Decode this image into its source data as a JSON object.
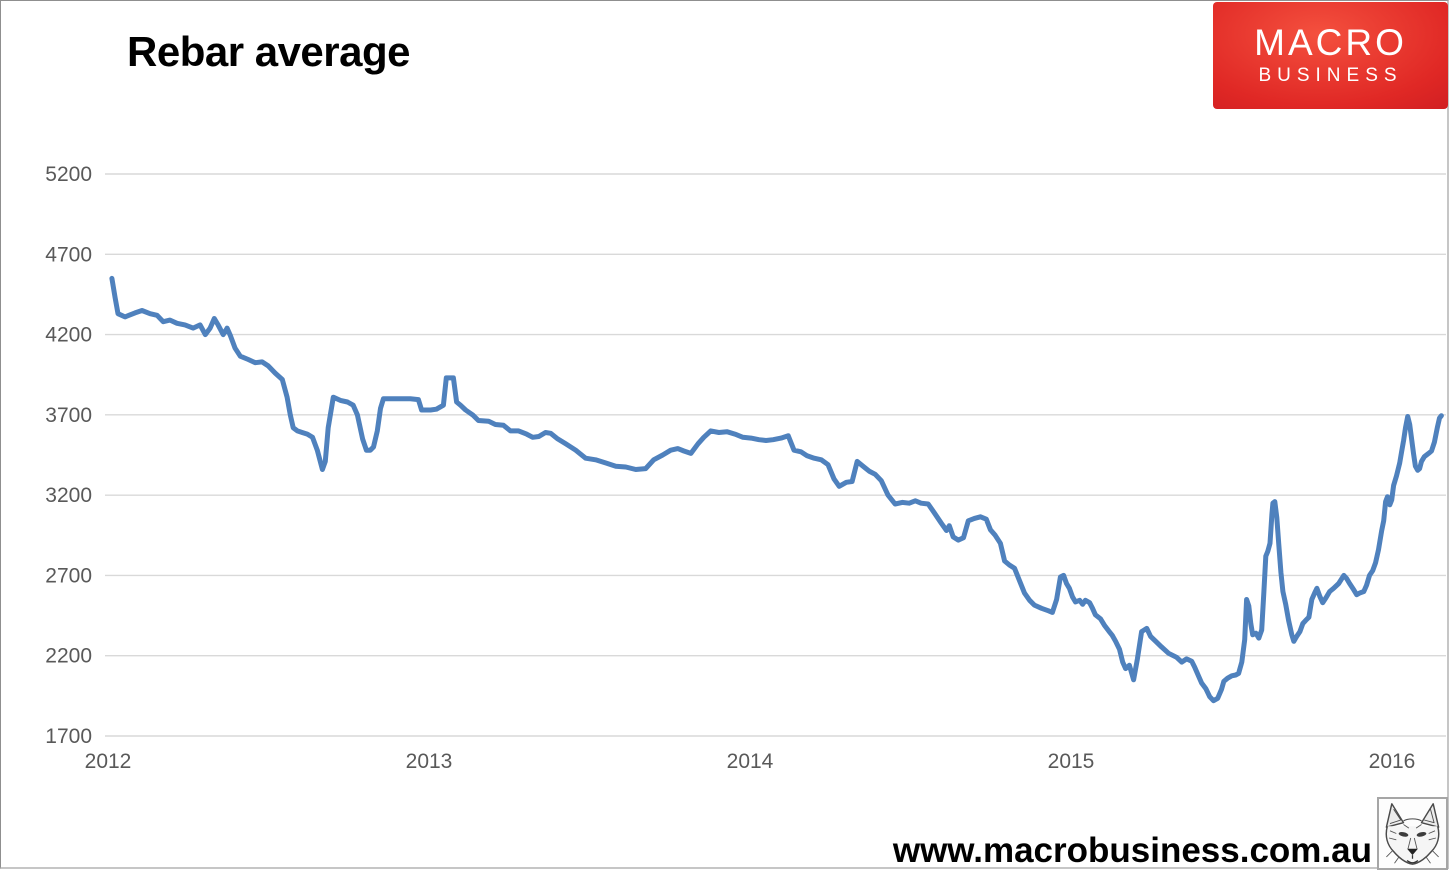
{
  "page": {
    "title": "Rebar average",
    "footer_url": "www.macrobusiness.com.au"
  },
  "logo": {
    "line1": "MACRO",
    "line2": "BUSINESS",
    "bg_color": "#d8232a",
    "text_color": "#ffffff"
  },
  "icons": {
    "wolf": "wolf-head-sketch-icon"
  },
  "colors": {
    "line": "#4F81BD",
    "gridline": "#d9d9d9",
    "axis_label": "#595959",
    "title": "#000000",
    "background": "#ffffff"
  },
  "chart_data": {
    "type": "line",
    "title": "Rebar average",
    "xlabel": "",
    "ylabel": "",
    "grid": true,
    "legend": "none",
    "ylim": [
      1700,
      5200
    ],
    "xlim": [
      2012.0,
      2016.18
    ],
    "y_ticks": [
      5200,
      4700,
      4200,
      3700,
      3200,
      2700,
      2200,
      1700
    ],
    "x_ticks": [
      2012,
      2013,
      2014,
      2015,
      2016
    ],
    "series": [
      {
        "name": "Rebar average",
        "color": "#4F81BD",
        "points": [
          [
            2012.012,
            4550
          ],
          [
            2012.022,
            4430
          ],
          [
            2012.031,
            4330
          ],
          [
            2012.053,
            4310
          ],
          [
            2012.084,
            4335
          ],
          [
            2012.106,
            4350
          ],
          [
            2012.131,
            4330
          ],
          [
            2012.153,
            4320
          ],
          [
            2012.172,
            4280
          ],
          [
            2012.193,
            4290
          ],
          [
            2012.215,
            4270
          ],
          [
            2012.24,
            4260
          ],
          [
            2012.265,
            4240
          ],
          [
            2012.287,
            4260
          ],
          [
            2012.303,
            4200
          ],
          [
            2012.318,
            4240
          ],
          [
            2012.331,
            4300
          ],
          [
            2012.343,
            4260
          ],
          [
            2012.359,
            4200
          ],
          [
            2012.371,
            4240
          ],
          [
            2012.381,
            4195
          ],
          [
            2012.396,
            4115
          ],
          [
            2012.412,
            4065
          ],
          [
            2012.437,
            4045
          ],
          [
            2012.459,
            4025
          ],
          [
            2012.48,
            4030
          ],
          [
            2012.499,
            4005
          ],
          [
            2012.521,
            3960
          ],
          [
            2012.543,
            3920
          ],
          [
            2012.558,
            3810
          ],
          [
            2012.568,
            3700
          ],
          [
            2012.577,
            3620
          ],
          [
            2012.59,
            3600
          ],
          [
            2012.605,
            3590
          ],
          [
            2012.621,
            3580
          ],
          [
            2012.637,
            3560
          ],
          [
            2012.652,
            3480
          ],
          [
            2012.668,
            3360
          ],
          [
            2012.677,
            3410
          ],
          [
            2012.686,
            3620
          ],
          [
            2012.702,
            3810
          ],
          [
            2012.724,
            3790
          ],
          [
            2012.746,
            3780
          ],
          [
            2012.764,
            3760
          ],
          [
            2012.777,
            3700
          ],
          [
            2012.793,
            3550
          ],
          [
            2012.805,
            3480
          ],
          [
            2012.817,
            3480
          ],
          [
            2012.827,
            3500
          ],
          [
            2012.839,
            3600
          ],
          [
            2012.849,
            3740
          ],
          [
            2012.858,
            3800
          ],
          [
            2012.895,
            3800
          ],
          [
            2012.942,
            3800
          ],
          [
            2012.967,
            3795
          ],
          [
            2012.977,
            3730
          ],
          [
            2013.005,
            3730
          ],
          [
            2013.023,
            3735
          ],
          [
            2013.045,
            3760
          ],
          [
            2013.054,
            3930
          ],
          [
            2013.076,
            3930
          ],
          [
            2013.086,
            3780
          ],
          [
            2013.098,
            3760
          ],
          [
            2013.114,
            3730
          ],
          [
            2013.136,
            3700
          ],
          [
            2013.154,
            3665
          ],
          [
            2013.186,
            3660
          ],
          [
            2013.207,
            3640
          ],
          [
            2013.232,
            3635
          ],
          [
            2013.254,
            3600
          ],
          [
            2013.279,
            3600
          ],
          [
            2013.304,
            3580
          ],
          [
            2013.323,
            3560
          ],
          [
            2013.342,
            3565
          ],
          [
            2013.363,
            3590
          ],
          [
            2013.379,
            3585
          ],
          [
            2013.401,
            3550
          ],
          [
            2013.426,
            3520
          ],
          [
            2013.457,
            3480
          ],
          [
            2013.488,
            3430
          ],
          [
            2013.519,
            3420
          ],
          [
            2013.551,
            3400
          ],
          [
            2013.582,
            3380
          ],
          [
            2013.613,
            3375
          ],
          [
            2013.644,
            3360
          ],
          [
            2013.675,
            3365
          ],
          [
            2013.7,
            3420
          ],
          [
            2013.728,
            3450
          ],
          [
            2013.753,
            3480
          ],
          [
            2013.775,
            3490
          ],
          [
            2013.794,
            3475
          ],
          [
            2013.816,
            3460
          ],
          [
            2013.838,
            3520
          ],
          [
            2013.856,
            3560
          ],
          [
            2013.878,
            3600
          ],
          [
            2013.903,
            3590
          ],
          [
            2013.928,
            3595
          ],
          [
            2013.953,
            3580
          ],
          [
            2013.978,
            3560
          ],
          [
            2014.003,
            3555
          ],
          [
            2014.028,
            3545
          ],
          [
            2014.05,
            3540
          ],
          [
            2014.072,
            3545
          ],
          [
            2014.097,
            3555
          ],
          [
            2014.119,
            3570
          ],
          [
            2014.137,
            3480
          ],
          [
            2014.159,
            3470
          ],
          [
            2014.178,
            3445
          ],
          [
            2014.2,
            3430
          ],
          [
            2014.222,
            3420
          ],
          [
            2014.243,
            3390
          ],
          [
            2014.262,
            3300
          ],
          [
            2014.278,
            3255
          ],
          [
            2014.3,
            3280
          ],
          [
            2014.318,
            3285
          ],
          [
            2014.334,
            3410
          ],
          [
            2014.352,
            3380
          ],
          [
            2014.371,
            3350
          ],
          [
            2014.39,
            3330
          ],
          [
            2014.409,
            3290
          ],
          [
            2014.43,
            3200
          ],
          [
            2014.452,
            3145
          ],
          [
            2014.474,
            3155
          ],
          [
            2014.496,
            3150
          ],
          [
            2014.515,
            3165
          ],
          [
            2014.533,
            3150
          ],
          [
            2014.555,
            3145
          ],
          [
            2014.574,
            3090
          ],
          [
            2014.596,
            3025
          ],
          [
            2014.612,
            2980
          ],
          [
            2014.621,
            3010
          ],
          [
            2014.633,
            2940
          ],
          [
            2014.649,
            2920
          ],
          [
            2014.665,
            2935
          ],
          [
            2014.68,
            3040
          ],
          [
            2014.699,
            3055
          ],
          [
            2014.718,
            3065
          ],
          [
            2014.736,
            3050
          ],
          [
            2014.749,
            2985
          ],
          [
            2014.764,
            2950
          ],
          [
            2014.78,
            2900
          ],
          [
            2014.793,
            2790
          ],
          [
            2014.808,
            2765
          ],
          [
            2014.824,
            2745
          ],
          [
            2014.839,
            2670
          ],
          [
            2014.855,
            2590
          ],
          [
            2014.871,
            2545
          ],
          [
            2014.886,
            2515
          ],
          [
            2014.908,
            2495
          ],
          [
            2014.93,
            2480
          ],
          [
            2014.942,
            2470
          ],
          [
            2014.955,
            2550
          ],
          [
            2014.967,
            2690
          ],
          [
            2014.977,
            2700
          ],
          [
            2014.986,
            2650
          ],
          [
            2014.995,
            2620
          ],
          [
            2015.005,
            2565
          ],
          [
            2015.014,
            2535
          ],
          [
            2015.027,
            2545
          ],
          [
            2015.036,
            2520
          ],
          [
            2015.045,
            2545
          ],
          [
            2015.058,
            2530
          ],
          [
            2015.067,
            2495
          ],
          [
            2015.076,
            2455
          ],
          [
            2015.092,
            2430
          ],
          [
            2015.104,
            2390
          ],
          [
            2015.117,
            2355
          ],
          [
            2015.129,
            2325
          ],
          [
            2015.139,
            2290
          ],
          [
            2015.151,
            2240
          ],
          [
            2015.161,
            2160
          ],
          [
            2015.17,
            2120
          ],
          [
            2015.182,
            2140
          ],
          [
            2015.195,
            2050
          ],
          [
            2015.207,
            2180
          ],
          [
            2015.22,
            2350
          ],
          [
            2015.236,
            2370
          ],
          [
            2015.248,
            2320
          ],
          [
            2015.264,
            2290
          ],
          [
            2015.282,
            2255
          ],
          [
            2015.304,
            2215
          ],
          [
            2015.329,
            2190
          ],
          [
            2015.345,
            2160
          ],
          [
            2015.36,
            2180
          ],
          [
            2015.376,
            2165
          ],
          [
            2015.385,
            2130
          ],
          [
            2015.398,
            2070
          ],
          [
            2015.407,
            2030
          ],
          [
            2015.42,
            1995
          ],
          [
            2015.432,
            1945
          ],
          [
            2015.444,
            1920
          ],
          [
            2015.457,
            1935
          ],
          [
            2015.469,
            1990
          ],
          [
            2015.476,
            2040
          ],
          [
            2015.488,
            2060
          ],
          [
            2015.501,
            2075
          ],
          [
            2015.513,
            2080
          ],
          [
            2015.522,
            2090
          ],
          [
            2015.532,
            2160
          ],
          [
            2015.541,
            2300
          ],
          [
            2015.547,
            2550
          ],
          [
            2015.554,
            2510
          ],
          [
            2015.56,
            2400
          ],
          [
            2015.566,
            2330
          ],
          [
            2015.576,
            2340
          ],
          [
            2015.585,
            2310
          ],
          [
            2015.594,
            2360
          ],
          [
            2015.601,
            2600
          ],
          [
            2015.607,
            2820
          ],
          [
            2015.613,
            2850
          ],
          [
            2015.62,
            2900
          ],
          [
            2015.626,
            3080
          ],
          [
            2015.629,
            3150
          ],
          [
            2015.635,
            3160
          ],
          [
            2015.641,
            3060
          ],
          [
            2015.647,
            2900
          ],
          [
            2015.654,
            2720
          ],
          [
            2015.66,
            2600
          ],
          [
            2015.669,
            2520
          ],
          [
            2015.678,
            2420
          ],
          [
            2015.688,
            2330
          ],
          [
            2015.694,
            2290
          ],
          [
            2015.703,
            2320
          ],
          [
            2015.713,
            2350
          ],
          [
            2015.722,
            2400
          ],
          [
            2015.731,
            2420
          ],
          [
            2015.741,
            2440
          ],
          [
            2015.75,
            2550
          ],
          [
            2015.759,
            2590
          ],
          [
            2015.766,
            2620
          ],
          [
            2015.775,
            2570
          ],
          [
            2015.784,
            2530
          ],
          [
            2015.794,
            2560
          ],
          [
            2015.806,
            2600
          ],
          [
            2015.818,
            2620
          ],
          [
            2015.834,
            2650
          ],
          [
            2015.85,
            2700
          ],
          [
            2015.859,
            2680
          ],
          [
            2015.868,
            2650
          ],
          [
            2015.881,
            2610
          ],
          [
            2015.89,
            2580
          ],
          [
            2015.899,
            2590
          ],
          [
            2015.912,
            2600
          ],
          [
            2015.921,
            2640
          ],
          [
            2015.93,
            2700
          ],
          [
            2015.94,
            2730
          ],
          [
            2015.949,
            2780
          ],
          [
            2015.958,
            2860
          ],
          [
            2015.968,
            2980
          ],
          [
            2015.974,
            3040
          ],
          [
            2015.98,
            3160
          ],
          [
            2015.986,
            3190
          ],
          [
            2015.993,
            3140
          ],
          [
            2015.999,
            3170
          ],
          [
            2016.005,
            3260
          ],
          [
            2016.014,
            3320
          ],
          [
            2016.024,
            3400
          ],
          [
            2016.03,
            3470
          ],
          [
            2016.036,
            3540
          ],
          [
            2016.042,
            3620
          ],
          [
            2016.049,
            3690
          ],
          [
            2016.055,
            3640
          ],
          [
            2016.061,
            3550
          ],
          [
            2016.067,
            3460
          ],
          [
            2016.073,
            3380
          ],
          [
            2016.08,
            3355
          ],
          [
            2016.086,
            3365
          ],
          [
            2016.092,
            3410
          ],
          [
            2016.101,
            3440
          ],
          [
            2016.114,
            3460
          ],
          [
            2016.123,
            3475
          ],
          [
            2016.132,
            3530
          ],
          [
            2016.141,
            3620
          ],
          [
            2016.148,
            3680
          ],
          [
            2016.154,
            3695
          ]
        ]
      }
    ]
  }
}
